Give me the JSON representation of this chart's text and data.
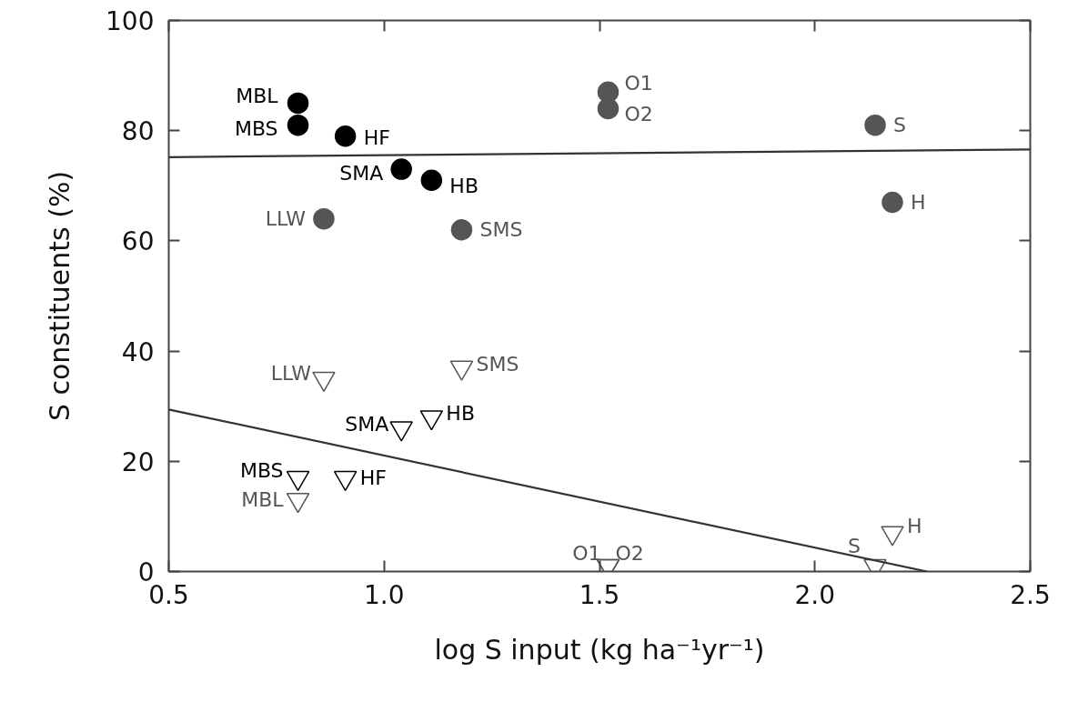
{
  "chart_data": {
    "type": "scatter",
    "xlabel": "log S input (kg ha⁻¹yr⁻¹)",
    "ylabel": "S constituents (%)",
    "xlim": [
      0.5,
      2.5
    ],
    "ylim": [
      0,
      100
    ],
    "xticks": [
      {
        "value": 0.5,
        "label": "0.5"
      },
      {
        "value": 1.0,
        "label": "1.0"
      },
      {
        "value": 1.5,
        "label": "1.5"
      },
      {
        "value": 2.0,
        "label": "2.0"
      },
      {
        "value": 2.5,
        "label": "2.5"
      }
    ],
    "yticks": [
      0,
      20,
      40,
      60,
      80,
      100
    ],
    "grid": false,
    "series": [
      {
        "marker": "circle",
        "color": "#000000",
        "x": [
          0.8,
          0.8,
          0.91,
          1.04,
          1.11
        ],
        "values": [
          85,
          81,
          79,
          73,
          71
        ]
      },
      {
        "marker": "circle",
        "color": "#555555",
        "x": [
          0.86,
          1.18,
          1.52,
          1.52,
          2.14,
          2.18
        ],
        "values": [
          64,
          62,
          87,
          84,
          81,
          67
        ]
      },
      {
        "marker": "triangle",
        "color": "#000000",
        "x": [
          1.04,
          1.11,
          0.8,
          0.91
        ],
        "values": [
          26,
          28,
          17,
          17
        ]
      },
      {
        "marker": "triangle",
        "color": "#555555",
        "x": [
          0.86,
          1.18,
          0.8,
          1.52,
          1.52,
          2.14,
          2.18
        ],
        "values": [
          35,
          37,
          13,
          1,
          1,
          1,
          7
        ]
      },
      {
        "type": "line",
        "color": "#333333",
        "x": [
          0.5,
          2.5
        ],
        "values": [
          75.2,
          76.6
        ]
      },
      {
        "type": "line",
        "color": "#333333",
        "x": [
          0.5,
          2.26
        ],
        "values": [
          29.4,
          0
        ]
      }
    ],
    "annotations": [
      {
        "text": "MBL",
        "x": 0.8,
        "y": 85
      },
      {
        "text": "MBS",
        "x": 0.8,
        "y": 81
      },
      {
        "text": "HF",
        "x": 0.91,
        "y": 79
      },
      {
        "text": "SMA",
        "x": 1.04,
        "y": 73
      },
      {
        "text": "HB",
        "x": 1.11,
        "y": 71
      },
      {
        "text": "LLW",
        "x": 0.86,
        "y": 64
      },
      {
        "text": "SMS",
        "x": 1.18,
        "y": 62
      },
      {
        "text": "O1",
        "x": 1.52,
        "y": 87
      },
      {
        "text": "O2",
        "x": 1.52,
        "y": 84
      },
      {
        "text": "S",
        "x": 2.14,
        "y": 81
      },
      {
        "text": "H",
        "x": 2.18,
        "y": 67
      },
      {
        "text": "LLW",
        "x": 0.86,
        "y": 35
      },
      {
        "text": "SMS",
        "x": 1.18,
        "y": 37
      },
      {
        "text": "SMA",
        "x": 1.04,
        "y": 26
      },
      {
        "text": "HB",
        "x": 1.11,
        "y": 28
      },
      {
        "text": "MBS",
        "x": 0.8,
        "y": 17
      },
      {
        "text": "HF",
        "x": 0.91,
        "y": 17
      },
      {
        "text": "MBL",
        "x": 0.8,
        "y": 13
      },
      {
        "text": "O1",
        "x": 1.52,
        "y": 1
      },
      {
        "text": "O2",
        "x": 1.52,
        "y": 1
      },
      {
        "text": "S",
        "x": 2.14,
        "y": 1
      },
      {
        "text": "H",
        "x": 2.18,
        "y": 7
      }
    ]
  }
}
